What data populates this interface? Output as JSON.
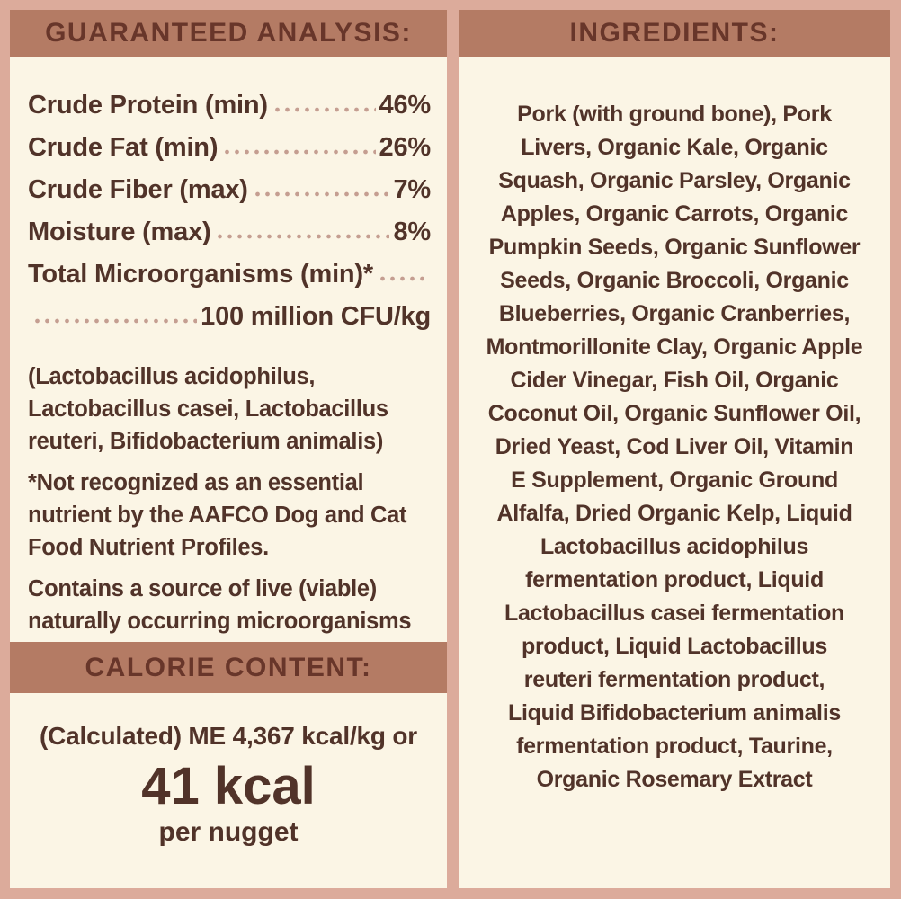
{
  "colors": {
    "background_pink": "#dcab9b",
    "header_bar": "#b47b64",
    "header_text": "#68362a",
    "panel_cream": "#fbf5e5",
    "body_text": "#513329",
    "dot_leader": "#c59e91"
  },
  "analysis": {
    "title": "GUARANTEED ANALYSIS:",
    "rows": [
      {
        "label": "Crude Protein (min)",
        "value": "46%"
      },
      {
        "label": "Crude Fat (min)",
        "value": "26%"
      },
      {
        "label": "Crude Fiber (max)",
        "value": "7%"
      },
      {
        "label": "Moisture (max)",
        "value": "8%"
      }
    ],
    "micro": {
      "label": "Total Microorganisms (min)*",
      "value": "100 million CFU/kg"
    },
    "strains": "(Lactobacillus acidophilus,\nLactobacillus casei, Lactobacillus\nreuteri, Bifidobacterium animalis)",
    "footnote": "*Not recognized as an essential\nnutrient by the AAFCO Dog and Cat\nFood Nutrient Profiles.",
    "contains": "Contains a source of live (viable)\nnaturally occurring microorganisms"
  },
  "calories": {
    "title": "CALORIE CONTENT:",
    "line": "(Calculated) ME 4,367 kcal/kg or",
    "big": "41 kcal",
    "unit": "per nugget"
  },
  "ingredients": {
    "title": "INGREDIENTS:",
    "text": "Pork (with ground bone), Pork\nLivers, Organic Kale, Organic\nSquash, Organic Parsley, Organic\nApples, Organic Carrots, Organic\nPumpkin Seeds, Organic Sunflower\nSeeds, Organic Broccoli, Organic\nBlueberries, Organic Cranberries,\nMontmorillonite Clay, Organic Apple\nCider Vinegar, Fish Oil, Organic\nCoconut Oil, Organic Sunflower Oil,\nDried Yeast, Cod Liver Oil, Vitamin\nE Supplement, Organic Ground\nAlfalfa, Dried Organic Kelp, Liquid\nLactobacillus acidophilus\nfermentation product, Liquid\nLactobacillus casei fermentation\nproduct, Liquid Lactobacillus\nreuteri fermentation product,\nLiquid Bifidobacterium animalis\nfermentation product, Taurine,\nOrganic Rosemary Extract"
  }
}
